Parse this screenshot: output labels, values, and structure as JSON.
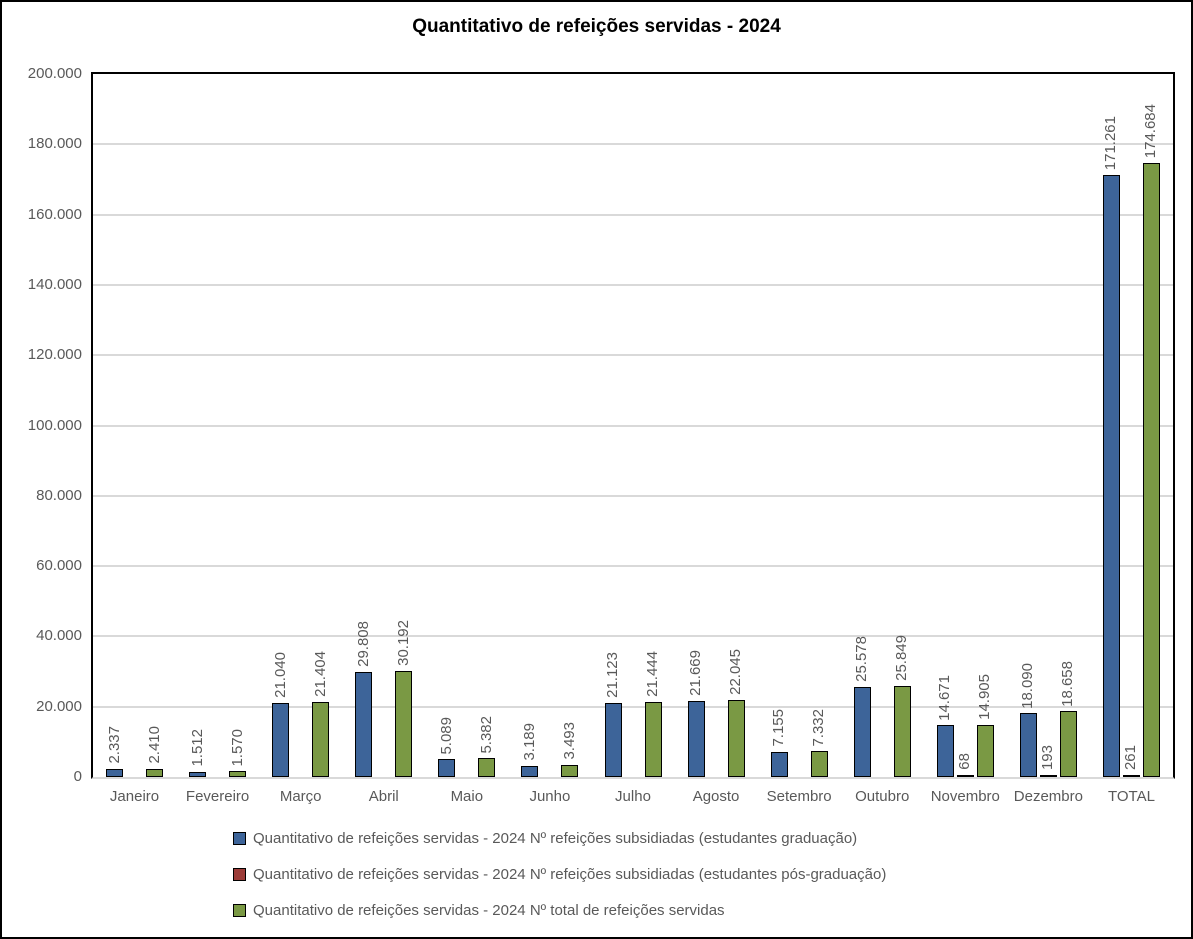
{
  "title": "Quantitativo de refeições servidas - 2024",
  "chart_data": {
    "type": "bar",
    "title": "Quantitativo de refeições servidas - 2024",
    "categories": [
      "Janeiro",
      "Fevereiro",
      "Março",
      "Abril",
      "Maio",
      "Junho",
      "Julho",
      "Agosto",
      "Setembro",
      "Outubro",
      "Novembro",
      "Dezembro",
      "TOTAL"
    ],
    "series": [
      {
        "name": "Quantitativo de refeições servidas - 2024 Nº refeições subsidiadas (estudantes graduação)",
        "color": "#3D6499",
        "values": [
          2337,
          1512,
          21040,
          29808,
          5089,
          3189,
          21123,
          21669,
          7155,
          25578,
          14671,
          18090,
          171261
        ]
      },
      {
        "name": "Quantitativo de refeições servidas - 2024 Nº refeições subsidiadas (estudantes pós-graduação)",
        "color": "#9C3C38",
        "values": [
          null,
          null,
          null,
          null,
          null,
          null,
          null,
          null,
          null,
          null,
          68,
          193,
          261
        ]
      },
      {
        "name": "Quantitativo de refeições servidas - 2024 Nº total de refeições servidas",
        "color": "#7A9944",
        "values": [
          2410,
          1570,
          21404,
          30192,
          5382,
          3493,
          21444,
          22045,
          7332,
          25849,
          14905,
          18658,
          174684
        ]
      }
    ],
    "ylim": [
      0,
      200000
    ],
    "ytick_step": 20000,
    "ytick_labels": [
      "0",
      "20.000",
      "40.000",
      "60.000",
      "80.000",
      "100.000",
      "120.000",
      "140.000",
      "160.000",
      "180.000",
      "200.000"
    ],
    "grid": true,
    "legend_position": "bottom",
    "colors": {
      "axis_text": "#595959",
      "gridline": "#D9D9D9",
      "bar_outline": "#000000",
      "title_text": "#000000"
    }
  }
}
